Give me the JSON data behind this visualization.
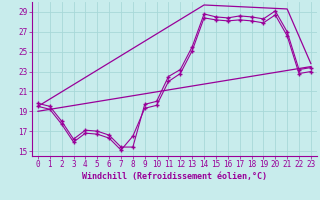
{
  "background_color": "#c8ecec",
  "grid_color": "#a8d8d8",
  "line_color": "#990099",
  "marker_color": "#990099",
  "xlabel": "Windchill (Refroidissement éolien,°C)",
  "xlabel_fontsize": 6.0,
  "xlim": [
    -0.5,
    23.5
  ],
  "ylim": [
    14.5,
    30.0
  ],
  "yticks": [
    15,
    17,
    19,
    21,
    23,
    25,
    27,
    29
  ],
  "xticks": [
    0,
    1,
    2,
    3,
    4,
    5,
    6,
    7,
    8,
    9,
    10,
    11,
    12,
    13,
    14,
    15,
    16,
    17,
    18,
    19,
    20,
    21,
    22,
    23
  ],
  "series1_x": [
    0,
    1,
    2,
    3,
    4,
    5,
    6,
    7,
    8,
    9,
    10,
    11,
    12,
    13,
    14,
    15,
    16,
    17,
    18,
    19,
    20,
    21,
    22,
    23
  ],
  "series1_y": [
    19.8,
    19.5,
    18.0,
    16.2,
    17.1,
    17.0,
    16.6,
    15.4,
    15.4,
    19.7,
    20.0,
    22.5,
    23.2,
    25.5,
    28.8,
    28.5,
    28.4,
    28.6,
    28.5,
    28.3,
    29.1,
    27.0,
    23.2,
    23.4
  ],
  "series2_x": [
    0,
    1,
    2,
    3,
    4,
    5,
    6,
    7,
    8,
    9,
    10,
    11,
    12,
    13,
    14,
    15,
    16,
    17,
    18,
    19,
    20,
    21,
    22,
    23
  ],
  "series2_y": [
    19.5,
    19.2,
    17.7,
    15.9,
    16.8,
    16.7,
    16.3,
    15.1,
    16.5,
    19.3,
    19.6,
    22.0,
    22.8,
    25.1,
    28.4,
    28.2,
    28.1,
    28.2,
    28.1,
    27.9,
    28.7,
    26.6,
    22.8,
    23.0
  ],
  "series3_x": [
    0,
    23
  ],
  "series3_y": [
    19.0,
    23.5
  ],
  "series4_x": [
    0,
    14,
    21,
    23
  ],
  "series4_y": [
    19.5,
    29.7,
    29.3,
    23.8
  ],
  "tick_fontsize": 5.5,
  "tick_color": "#990099"
}
